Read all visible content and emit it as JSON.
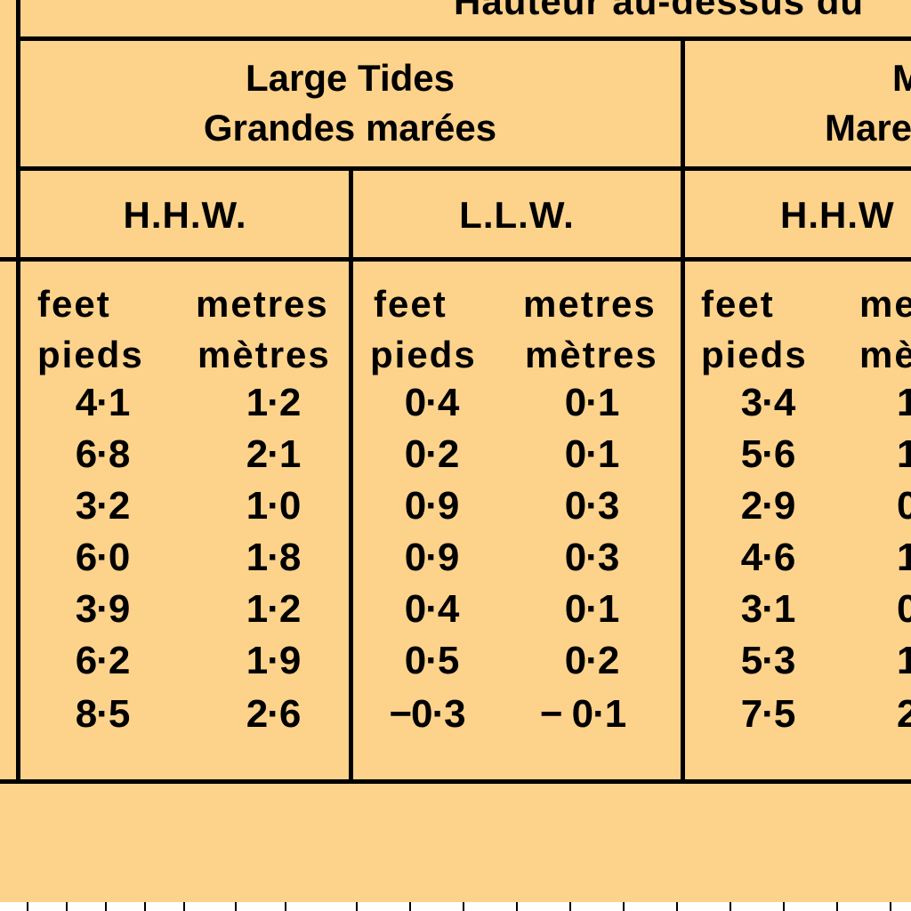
{
  "table": {
    "top_header": "Hauteur au-dessus du",
    "group_large": {
      "line1": "Large Tides",
      "line2": "Grandes marées"
    },
    "group_mean": {
      "line1": "M",
      "line2": "Mare"
    },
    "col_hhw_1": "H.H.W.",
    "col_llw": "L.L.W.",
    "col_hhw_2": "H.H.W",
    "units": {
      "feet": "feet",
      "pieds": "pieds",
      "metres": "metres",
      "metres_fr": "mètres",
      "metres_cut": "me",
      "metres_fr_cut": "mè"
    },
    "large_hhw_feet": [
      "4·1",
      "6·8",
      "3·2",
      "6·0",
      "3·9",
      "6·2",
      "8·5"
    ],
    "large_hhw_metres": [
      "1·2",
      "2·1",
      "1·0",
      "1·8",
      "1·2",
      "1·9",
      "2·6"
    ],
    "large_llw_feet": [
      "0·4",
      "0·2",
      "0·9",
      "0·9",
      "0·4",
      "0·5",
      "−0·3"
    ],
    "large_llw_metres": [
      "0·1",
      "0·1",
      "0·3",
      "0·3",
      "0·1",
      "0·2",
      "− 0·1"
    ],
    "mean_hhw_feet": [
      "3·4",
      "5·6",
      "2·9",
      "4·6",
      "3·1",
      "5·3",
      "7·5"
    ],
    "mean_hhw_metres_partial": [
      "1",
      "1",
      "0",
      "1",
      "0",
      "1",
      "2"
    ]
  }
}
